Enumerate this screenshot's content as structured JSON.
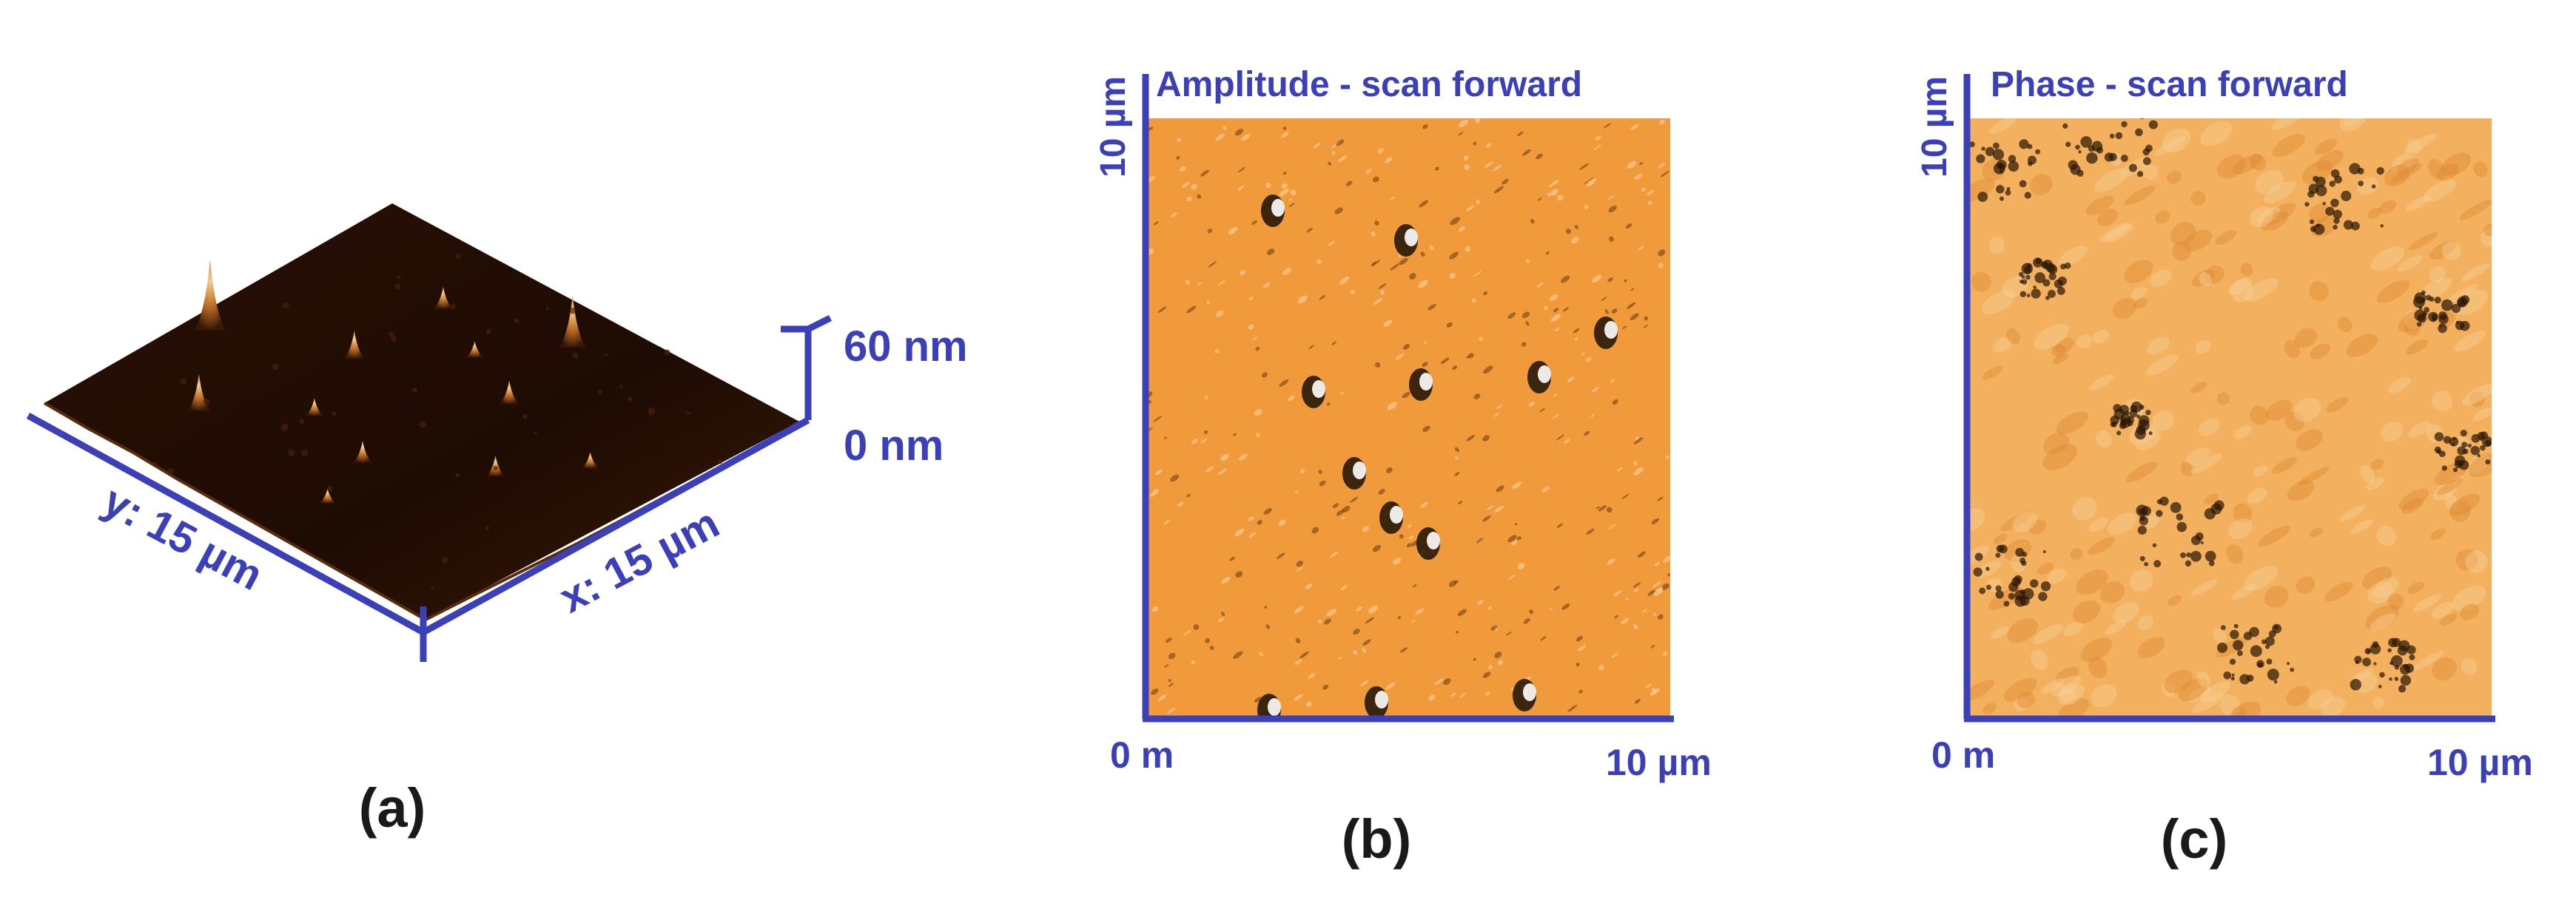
{
  "colors": {
    "axis": "#3b3fb8",
    "label_dark": "#1a1a1a",
    "topo_dark": "#1a0a03",
    "topo_peak": "#f3c37a",
    "amp_base": "#f09a3c",
    "phase_base": "#f3b160"
  },
  "panel_a": {
    "caption": "(a)",
    "x_axis_label": "x: 15 µm",
    "y_axis_label": "y: 15 µm",
    "z_top_label": "60 nm",
    "z_bottom_label": "0 nm"
  },
  "panel_b": {
    "caption": "(b)",
    "title": "Amplitude - scan forward",
    "y_top_label": "10 µm",
    "x_origin_label": "0 m",
    "x_end_label": "10 µm"
  },
  "panel_c": {
    "caption": "(c)",
    "title": "Phase - scan forward",
    "y_top_label": "10 µm",
    "x_origin_label": "0 m",
    "x_end_label": "10 µm"
  }
}
